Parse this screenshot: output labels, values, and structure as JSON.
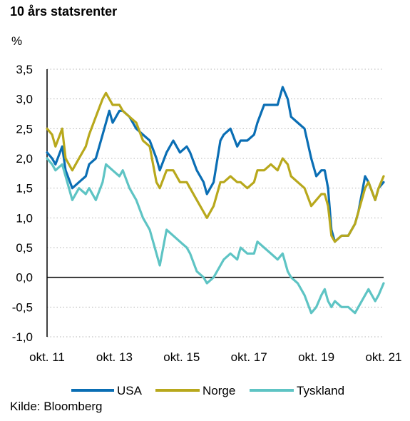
{
  "chart_data": {
    "type": "line",
    "title": "10 års statsrenter",
    "ylabel": "%",
    "source": "Kilde: Bloomberg",
    "ylim": [
      -1.0,
      3.5
    ],
    "yticks": [
      "3,5",
      "3,0",
      "2,5",
      "2,0",
      "1,5",
      "1,0",
      "0,5",
      "0,0",
      "-0,5",
      "-1,0"
    ],
    "ytick_values": [
      3.5,
      3.0,
      2.5,
      2.0,
      1.5,
      1.0,
      0.5,
      0.0,
      -0.5,
      -1.0
    ],
    "xlim": [
      2011.75,
      2021.75
    ],
    "xticks": [
      "okt. 11",
      "okt. 13",
      "okt. 15",
      "okt. 17",
      "okt. 19",
      "okt. 21"
    ],
    "xtick_values": [
      2011.75,
      2013.75,
      2015.75,
      2017.75,
      2019.75,
      2021.75
    ],
    "grid": "horizontal dotted",
    "legend_position": "bottom",
    "series": [
      {
        "name": "USA",
        "color": "#0a6eb4",
        "x": [
          2011.75,
          2011.9,
          2012.0,
          2012.2,
          2012.3,
          2012.5,
          2012.7,
          2012.9,
          2013.0,
          2013.2,
          2013.4,
          2013.6,
          2013.7,
          2013.9,
          2014.0,
          2014.2,
          2014.4,
          2014.6,
          2014.8,
          2015.0,
          2015.1,
          2015.3,
          2015.5,
          2015.7,
          2015.9,
          2016.0,
          2016.2,
          2016.4,
          2016.5,
          2016.7,
          2016.9,
          2017.0,
          2017.2,
          2017.4,
          2017.5,
          2017.7,
          2017.9,
          2018.0,
          2018.2,
          2018.4,
          2018.6,
          2018.75,
          2018.9,
          2019.0,
          2019.2,
          2019.4,
          2019.6,
          2019.75,
          2019.9,
          2020.0,
          2020.1,
          2020.2,
          2020.3,
          2020.5,
          2020.7,
          2020.9,
          2021.0,
          2021.2,
          2021.3,
          2021.5,
          2021.6,
          2021.75
        ],
        "y": [
          2.1,
          2.0,
          1.9,
          2.2,
          1.8,
          1.5,
          1.6,
          1.7,
          1.9,
          2.0,
          2.4,
          2.8,
          2.6,
          2.8,
          2.8,
          2.7,
          2.5,
          2.4,
          2.3,
          2.0,
          1.8,
          2.1,
          2.3,
          2.1,
          2.2,
          2.1,
          1.8,
          1.6,
          1.4,
          1.6,
          2.3,
          2.4,
          2.5,
          2.2,
          2.3,
          2.3,
          2.4,
          2.6,
          2.9,
          2.9,
          2.9,
          3.2,
          3.0,
          2.7,
          2.6,
          2.5,
          2.0,
          1.7,
          1.8,
          1.8,
          1.5,
          0.8,
          0.6,
          0.7,
          0.7,
          0.9,
          1.1,
          1.7,
          1.6,
          1.3,
          1.5,
          1.6
        ]
      },
      {
        "name": "Norge",
        "color": "#b8a81c",
        "x": [
          2011.75,
          2011.9,
          2012.0,
          2012.2,
          2012.3,
          2012.5,
          2012.7,
          2012.9,
          2013.0,
          2013.2,
          2013.4,
          2013.5,
          2013.7,
          2013.9,
          2014.0,
          2014.2,
          2014.4,
          2014.6,
          2014.8,
          2015.0,
          2015.1,
          2015.3,
          2015.5,
          2015.7,
          2015.9,
          2016.0,
          2016.2,
          2016.4,
          2016.5,
          2016.7,
          2016.9,
          2017.0,
          2017.2,
          2017.4,
          2017.5,
          2017.7,
          2017.9,
          2018.0,
          2018.2,
          2018.4,
          2018.6,
          2018.75,
          2018.9,
          2019.0,
          2019.2,
          2019.4,
          2019.6,
          2019.75,
          2019.9,
          2020.0,
          2020.1,
          2020.2,
          2020.3,
          2020.5,
          2020.7,
          2020.9,
          2021.0,
          2021.2,
          2021.3,
          2021.5,
          2021.6,
          2021.75
        ],
        "y": [
          2.5,
          2.4,
          2.2,
          2.5,
          2.0,
          1.8,
          2.0,
          2.2,
          2.4,
          2.7,
          3.0,
          3.1,
          2.9,
          2.9,
          2.8,
          2.7,
          2.6,
          2.3,
          2.2,
          1.6,
          1.5,
          1.8,
          1.8,
          1.6,
          1.6,
          1.5,
          1.3,
          1.1,
          1.0,
          1.2,
          1.6,
          1.6,
          1.7,
          1.6,
          1.6,
          1.5,
          1.6,
          1.8,
          1.8,
          1.9,
          1.8,
          2.0,
          1.9,
          1.7,
          1.6,
          1.5,
          1.2,
          1.3,
          1.4,
          1.4,
          1.2,
          0.7,
          0.6,
          0.7,
          0.7,
          0.9,
          1.1,
          1.5,
          1.6,
          1.3,
          1.5,
          1.7
        ]
      },
      {
        "name": "Tyskland",
        "color": "#5ec4c4",
        "x": [
          2011.75,
          2011.9,
          2012.0,
          2012.2,
          2012.3,
          2012.5,
          2012.7,
          2012.9,
          2013.0,
          2013.2,
          2013.4,
          2013.5,
          2013.7,
          2013.9,
          2014.0,
          2014.2,
          2014.4,
          2014.6,
          2014.8,
          2015.0,
          2015.1,
          2015.3,
          2015.5,
          2015.7,
          2015.9,
          2016.0,
          2016.2,
          2016.4,
          2016.5,
          2016.7,
          2016.9,
          2017.0,
          2017.2,
          2017.4,
          2017.5,
          2017.7,
          2017.9,
          2018.0,
          2018.2,
          2018.4,
          2018.6,
          2018.75,
          2018.9,
          2019.0,
          2019.2,
          2019.4,
          2019.6,
          2019.75,
          2019.9,
          2020.0,
          2020.1,
          2020.2,
          2020.3,
          2020.5,
          2020.7,
          2020.9,
          2021.0,
          2021.2,
          2021.3,
          2021.5,
          2021.6,
          2021.75
        ],
        "y": [
          2.0,
          1.9,
          1.8,
          1.9,
          1.7,
          1.3,
          1.5,
          1.4,
          1.5,
          1.3,
          1.6,
          1.9,
          1.8,
          1.7,
          1.8,
          1.5,
          1.3,
          1.0,
          0.8,
          0.4,
          0.2,
          0.8,
          0.7,
          0.6,
          0.5,
          0.4,
          0.1,
          0.0,
          -0.1,
          0.0,
          0.2,
          0.3,
          0.4,
          0.3,
          0.5,
          0.4,
          0.4,
          0.6,
          0.5,
          0.4,
          0.3,
          0.4,
          0.1,
          0.0,
          -0.1,
          -0.3,
          -0.6,
          -0.5,
          -0.3,
          -0.2,
          -0.4,
          -0.5,
          -0.4,
          -0.5,
          -0.5,
          -0.6,
          -0.5,
          -0.3,
          -0.2,
          -0.4,
          -0.3,
          -0.1
        ]
      }
    ]
  }
}
